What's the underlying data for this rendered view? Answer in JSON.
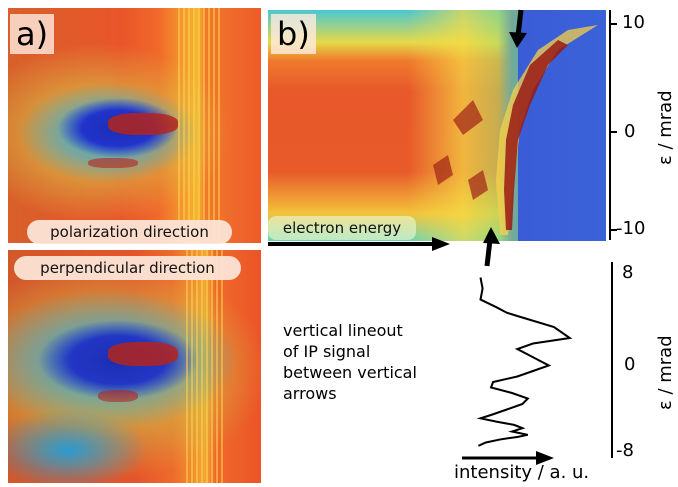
{
  "panel_a": {
    "label": "a)",
    "top_caption": "polarization direction",
    "bottom_caption": "perpendicular direction"
  },
  "panel_b": {
    "label": "b)",
    "energy_label": "electron energy",
    "y_axis_label": "ε / mrad",
    "y_ticks": [
      "10",
      "0",
      "-10"
    ]
  },
  "lineout": {
    "caption_lines": [
      "vertical lineout",
      "of IP signal",
      "between vertical",
      "arrows"
    ],
    "x_axis_label": "intensity / a. u.",
    "y_axis_label": "ε / mrad",
    "y_ticks": [
      "8",
      "0",
      "-8"
    ]
  },
  "chart_data": {
    "type": "line",
    "title": "",
    "xlabel": "intensity / a. u.",
    "ylabel": "ε / mrad",
    "ylim": [
      -8,
      8
    ],
    "x": [
      0.1,
      0.12,
      0.1,
      0.25,
      0.35,
      0.45,
      0.8,
      0.95,
      0.6,
      0.45,
      0.55,
      0.65,
      0.75,
      0.6,
      0.45,
      0.22,
      0.2,
      0.4,
      0.55,
      0.5,
      0.35,
      0.2,
      0.1,
      0.25,
      0.42,
      0.5,
      0.4,
      0.55,
      0.45,
      0.3,
      0.15,
      0.08
    ],
    "y": [
      7.5,
      6.5,
      5.5,
      4.8,
      4.3,
      4.0,
      3.0,
      2.0,
      1.5,
      1.0,
      0.5,
      0.0,
      -0.5,
      -1.0,
      -1.5,
      -2.0,
      -2.5,
      -3.0,
      -3.5,
      -4.0,
      -4.5,
      -5.0,
      -5.3,
      -5.6,
      -5.9,
      -6.2,
      -6.5,
      -6.8,
      -7.0,
      -7.2,
      -7.5,
      -7.8
    ]
  }
}
